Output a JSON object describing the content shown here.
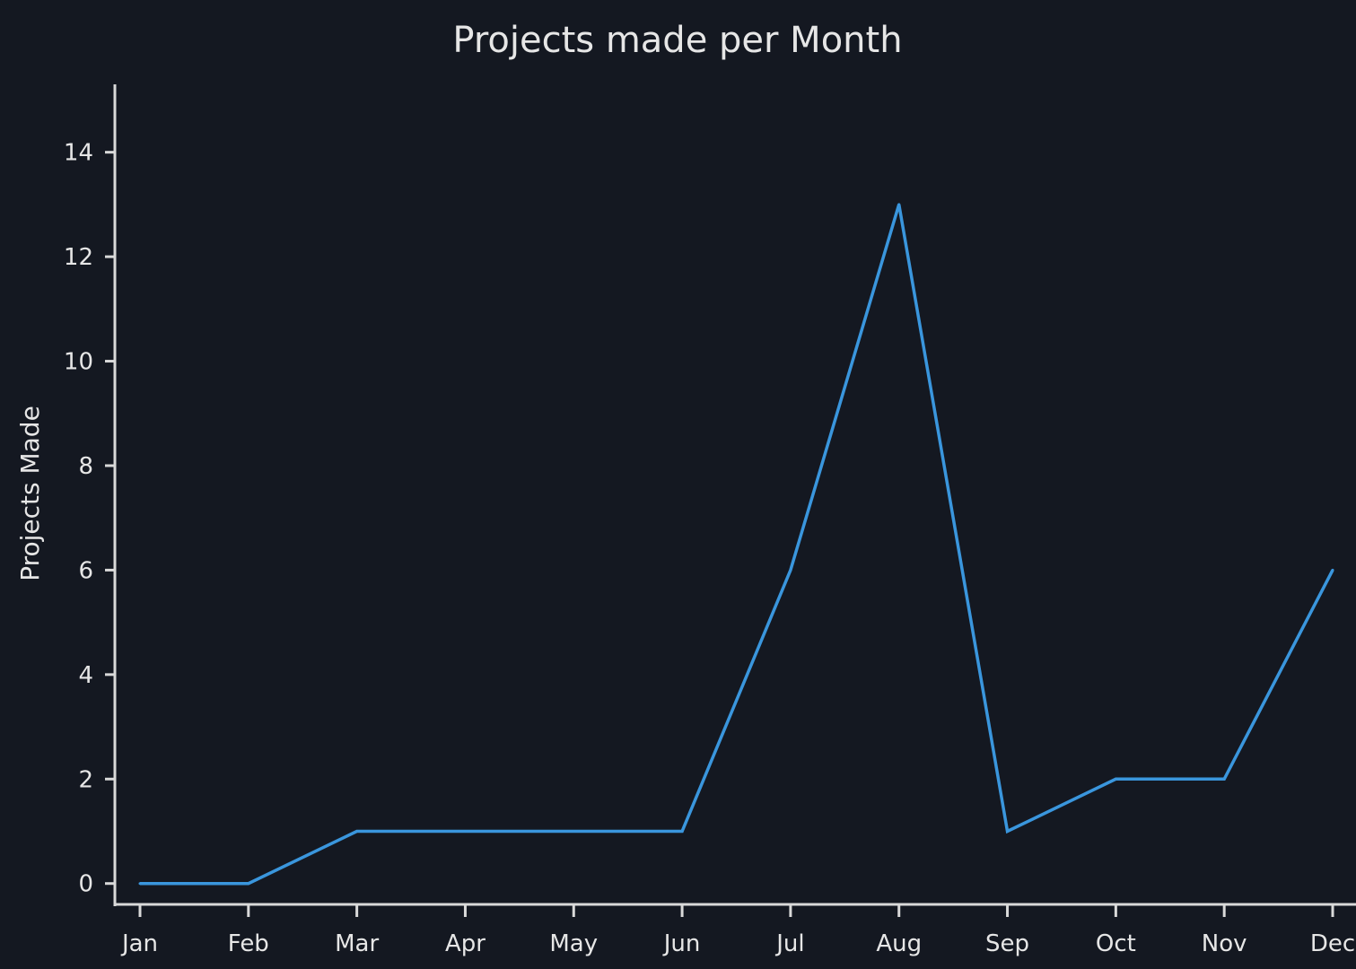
{
  "chart_data": {
    "type": "line",
    "title": "Projects made per Month",
    "xlabel": "",
    "ylabel": "Projects Made",
    "categories": [
      "Jan",
      "Feb",
      "Mar",
      "Apr",
      "May",
      "Jun",
      "Jul",
      "Aug",
      "Sep",
      "Oct",
      "Nov",
      "Dec"
    ],
    "series": [
      {
        "values": [
          0,
          0,
          1,
          1,
          1,
          1,
          6,
          13,
          1,
          2,
          2,
          6
        ],
        "color": "#3a96dd"
      }
    ],
    "ylim": [
      -0.4,
      15.3
    ],
    "yticks": [
      0,
      2,
      4,
      6,
      8,
      10,
      12,
      14
    ],
    "grid": false,
    "legend": "none",
    "colors": {
      "background": "#141821",
      "text": "#e6e6e6",
      "axis": "#d9d9d9"
    }
  }
}
